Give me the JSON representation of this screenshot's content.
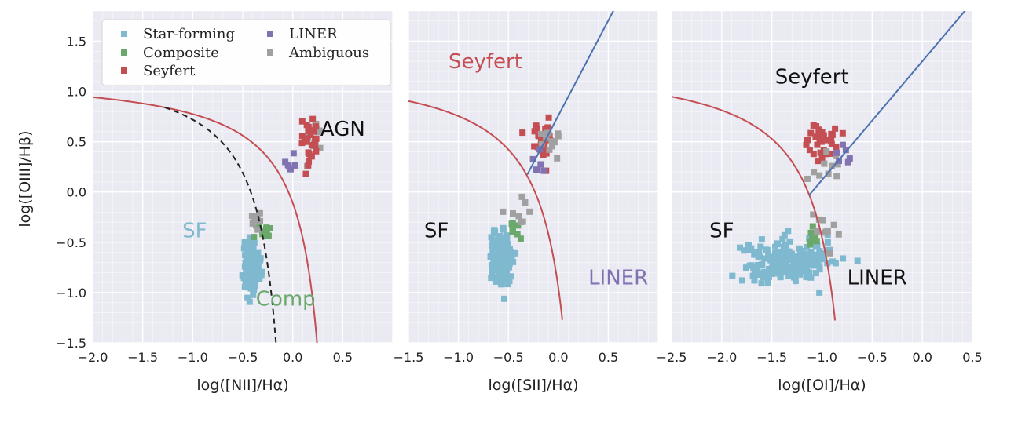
{
  "chart_data": {
    "type": "scatter",
    "shared_ylabel": "log([OIII]/Hβ)",
    "ylim": [
      -1.5,
      1.8
    ],
    "yticks": [
      -1.5,
      -1.0,
      -0.5,
      0.0,
      0.5,
      1.0,
      1.5
    ],
    "ytick_labels": [
      "−1.5",
      "−1.0",
      "−0.5",
      "0.0",
      "0.5",
      "1.0",
      "1.5"
    ],
    "legend": {
      "location": "top-left of first panel",
      "entries": [
        {
          "label": "Star-forming",
          "color": "#7fb9d0"
        },
        {
          "label": "Composite",
          "color": "#6aa86b"
        },
        {
          "label": "Seyfert",
          "color": "#c44e52"
        },
        {
          "label": "LINER",
          "color": "#8172b2"
        },
        {
          "label": "Ambiguous",
          "color": "#a0a0a0"
        }
      ]
    },
    "panels": [
      {
        "xlabel": "log([NII]/Hα)",
        "xlim": [
          -2.0,
          1.0
        ],
        "xticks": [
          -2.0,
          -1.5,
          -1.0,
          -0.5,
          0.0,
          0.5
        ],
        "xtick_labels": [
          "−2.0",
          "−1.5",
          "−1.0",
          "−0.5",
          "0.0",
          "0.5"
        ],
        "curves": [
          {
            "name": "kewley-2001",
            "color": "#c44e52",
            "dash": false,
            "formula": "0.61/(x-0.47)+1.19",
            "xmax": 0.26
          },
          {
            "name": "kauffmann-2003",
            "color": "#222222",
            "dash": true,
            "formula": "0.61/(x-0.05)+1.30",
            "xmin": -1.28,
            "xmax": -0.15
          }
        ],
        "region_labels": [
          {
            "text": "SF",
            "x": -0.98,
            "y": -0.45,
            "color": "#7fb9d0"
          },
          {
            "text": "AGN",
            "x": 0.5,
            "y": 0.56,
            "color": "#111111"
          },
          {
            "text": "Comp",
            "x": -0.07,
            "y": -1.13,
            "color": "#6aa86b"
          }
        ],
        "clusters": [
          {
            "class": "Star-forming",
            "cx": -0.41,
            "cy": -0.72,
            "sx": 0.035,
            "sy": 0.12,
            "n": 160
          },
          {
            "class": "Composite",
            "cx": -0.31,
            "cy": -0.37,
            "sx": 0.04,
            "sy": 0.05,
            "n": 14
          },
          {
            "class": "Ambiguous",
            "cx": -0.38,
            "cy": -0.33,
            "sx": 0.05,
            "sy": 0.07,
            "n": 10
          },
          {
            "class": "Ambiguous",
            "cx": 0.22,
            "cy": 0.54,
            "sx": 0.04,
            "sy": 0.1,
            "n": 12
          },
          {
            "class": "Seyfert",
            "cx": 0.17,
            "cy": 0.52,
            "sx": 0.045,
            "sy": 0.11,
            "n": 30
          },
          {
            "class": "LINER",
            "cx": 0.02,
            "cy": 0.27,
            "sx": 0.04,
            "sy": 0.06,
            "n": 6
          }
        ]
      },
      {
        "xlabel": "log([SII]/Hα)",
        "xlim": [
          -1.5,
          1.0
        ],
        "xticks": [
          -1.5,
          -1.0,
          -0.5,
          0.0,
          0.5
        ],
        "xtick_labels": [
          "−1.5",
          "−1.0",
          "−0.5",
          "0.0",
          "0.5"
        ],
        "curves": [
          {
            "name": "kewley-2001",
            "color": "#c44e52",
            "dash": false,
            "formula": "0.72/(x-0.32)+1.30",
            "xmax": 0.04
          },
          {
            "name": "seyfert-liner-line",
            "color": "#4c72b0",
            "dash": false,
            "formula": "1.89*x+0.76",
            "xmin": -0.31,
            "xmax": 0.75
          }
        ],
        "region_labels": [
          {
            "text": "Seyfert",
            "x": -0.73,
            "y": 1.23,
            "color": "#c44e52"
          },
          {
            "text": "SF",
            "x": -1.22,
            "y": -0.45,
            "color": "#111111"
          },
          {
            "text": "LINER",
            "x": 0.6,
            "y": -0.92,
            "color": "#8172b2"
          }
        ],
        "clusters": [
          {
            "class": "Star-forming",
            "cx": -0.58,
            "cy": -0.66,
            "sx": 0.055,
            "sy": 0.12,
            "n": 170
          },
          {
            "class": "Composite",
            "cx": -0.45,
            "cy": -0.36,
            "sx": 0.03,
            "sy": 0.06,
            "n": 8
          },
          {
            "class": "Ambiguous",
            "cx": -0.42,
            "cy": -0.2,
            "sx": 0.06,
            "sy": 0.1,
            "n": 8
          },
          {
            "class": "Seyfert",
            "cx": -0.15,
            "cy": 0.52,
            "sx": 0.06,
            "sy": 0.1,
            "n": 30
          },
          {
            "class": "Ambiguous",
            "cx": -0.08,
            "cy": 0.56,
            "sx": 0.05,
            "sy": 0.1,
            "n": 12
          },
          {
            "class": "LINER",
            "cx": -0.2,
            "cy": 0.27,
            "sx": 0.06,
            "sy": 0.08,
            "n": 6
          }
        ]
      },
      {
        "xlabel": "log([OI]/Hα)",
        "xlim": [
          -2.5,
          0.5
        ],
        "xticks": [
          -2.5,
          -2.0,
          -1.5,
          -1.0,
          -0.5,
          0.0,
          0.5
        ],
        "xtick_labels": [
          "−2.5",
          "−2.0",
          "−1.5",
          "−1.0",
          "−0.5",
          "0.0",
          "0.5"
        ],
        "curves": [
          {
            "name": "kewley-2001",
            "color": "#c44e52",
            "dash": false,
            "formula": "0.73/(x+0.59)+1.33",
            "xmax": -0.87
          },
          {
            "name": "seyfert-liner-line",
            "color": "#4c72b0",
            "dash": false,
            "formula": "1.18*x+1.30",
            "xmin": -1.13,
            "xmax": 0.5
          }
        ],
        "region_labels": [
          {
            "text": "Seyfert",
            "x": -1.1,
            "y": 1.08,
            "color": "#111111"
          },
          {
            "text": "SF",
            "x": -2.0,
            "y": -0.45,
            "color": "#111111"
          },
          {
            "text": "LINER",
            "x": -0.45,
            "y": -0.92,
            "color": "#111111"
          }
        ],
        "clusters": [
          {
            "class": "Star-forming",
            "cx": -1.35,
            "cy": -0.68,
            "sx": 0.22,
            "sy": 0.1,
            "n": 220
          },
          {
            "class": "Composite",
            "cx": -1.1,
            "cy": -0.45,
            "sx": 0.05,
            "sy": 0.06,
            "n": 8
          },
          {
            "class": "Ambiguous",
            "cx": -1.02,
            "cy": -0.42,
            "sx": 0.08,
            "sy": 0.1,
            "n": 10
          },
          {
            "class": "Seyfert",
            "cx": -1.0,
            "cy": 0.5,
            "sx": 0.07,
            "sy": 0.1,
            "n": 30
          },
          {
            "class": "Ambiguous",
            "cx": -0.98,
            "cy": 0.25,
            "sx": 0.09,
            "sy": 0.15,
            "n": 10
          },
          {
            "class": "LINER",
            "cx": -0.75,
            "cy": 0.35,
            "sx": 0.06,
            "sy": 0.06,
            "n": 6
          }
        ]
      }
    ]
  }
}
